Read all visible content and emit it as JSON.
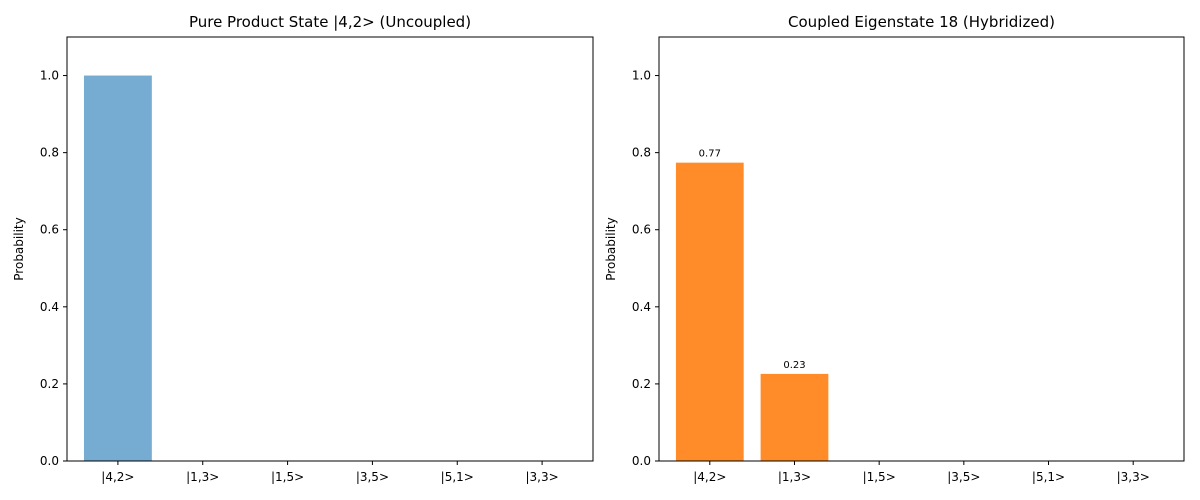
{
  "chart_data": [
    {
      "type": "bar",
      "title": "Pure Product State |4,2> (Uncoupled)",
      "xlabel": "",
      "ylabel": "Probability",
      "categories": [
        "|4,2>",
        "|1,3>",
        "|1,5>",
        "|3,5>",
        "|5,1>",
        "|3,3>"
      ],
      "values": [
        1.0,
        0,
        0,
        0,
        0,
        0
      ],
      "bar_labels": [
        "",
        "",
        "",
        "",
        "",
        ""
      ],
      "ylim": [
        0,
        1.1
      ],
      "yticks": [
        "0.0",
        "0.2",
        "0.4",
        "0.6",
        "0.8",
        "1.0"
      ],
      "grid": false,
      "color": "#77acd2"
    },
    {
      "type": "bar",
      "title": "Coupled Eigenstate 18 (Hybridized)",
      "xlabel": "",
      "ylabel": "Probability",
      "categories": [
        "|4,2>",
        "|1,3>",
        "|1,5>",
        "|3,5>",
        "|5,1>",
        "|3,3>"
      ],
      "values": [
        0.774,
        0.226,
        0,
        0,
        0,
        0
      ],
      "bar_labels": [
        "0.77",
        "0.23",
        "",
        "",
        "",
        ""
      ],
      "ylim": [
        0,
        1.1
      ],
      "yticks": [
        "0.0",
        "0.2",
        "0.4",
        "0.6",
        "0.8",
        "1.0"
      ],
      "grid": false,
      "color": "#ff8c28"
    }
  ]
}
